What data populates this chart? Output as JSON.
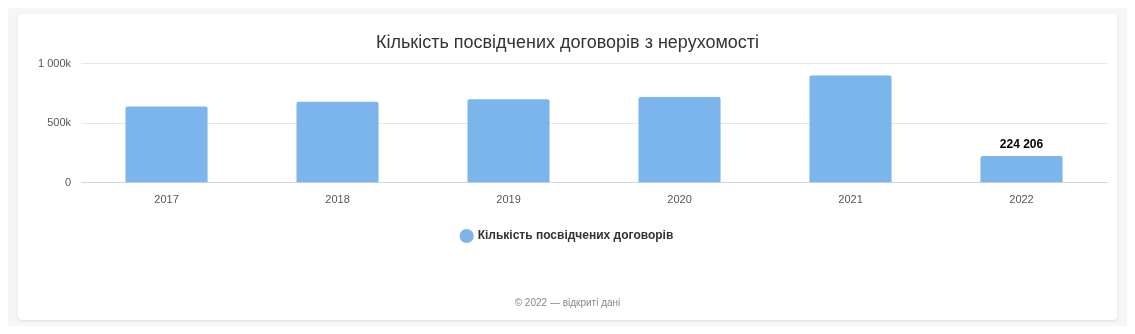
{
  "chart_data": {
    "type": "bar",
    "title": "Кількість посвідчених договорів з нерухомості",
    "categories": [
      "2017",
      "2018",
      "2019",
      "2020",
      "2021",
      "2022"
    ],
    "series": [
      {
        "name": "Кількість посвідчених договорів",
        "color": "#7cb5ec",
        "values": [
          640000,
          680000,
          700000,
          720000,
          900000,
          224206
        ],
        "value_labels": [
          null,
          null,
          null,
          null,
          null,
          "224 206"
        ]
      }
    ],
    "ylim": [
      0,
      1000000
    ],
    "yticks": [
      0,
      {
        "value": 500000,
        "label": "500k"
      },
      {
        "value": 1000000,
        "label": "1 000k"
      }
    ],
    "grid": "y",
    "legend": "bottom",
    "annotations": [
      "© 2022 — відкриті дані"
    ]
  }
}
